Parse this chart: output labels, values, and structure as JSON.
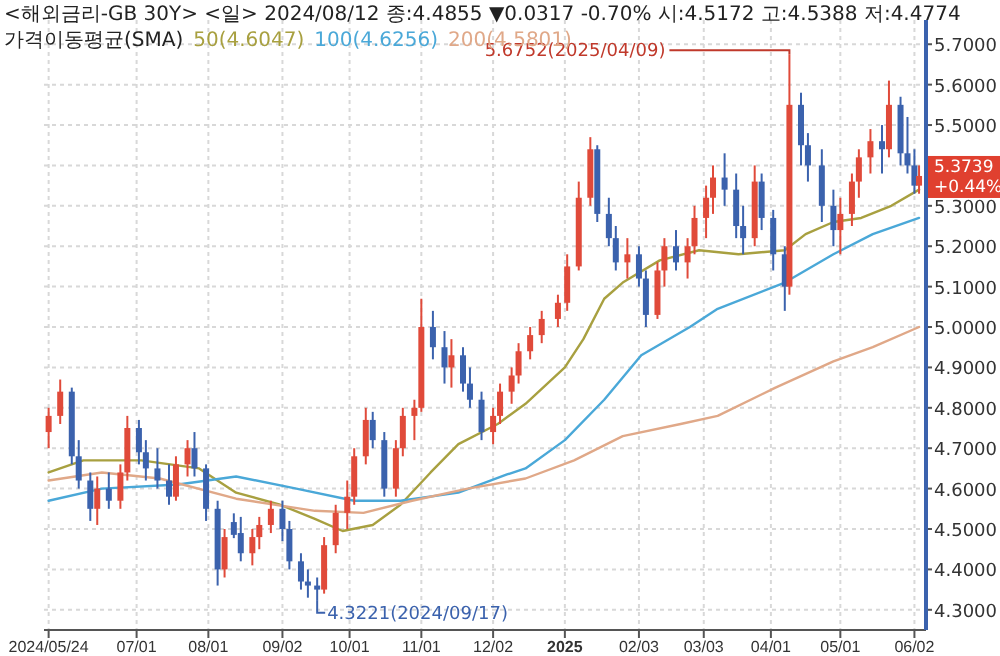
{
  "chart_data": {
    "type": "candlestick",
    "title": "<해외금리-GB 30Y> <일> 2024/08/12 종:4.4855 ▼0.0317 -0.70% 시:4.5172 고:4.5388 저:4.4774",
    "subtitle": "가격이동평균(SMA)",
    "x": [
      "2024-05-24",
      "2024-05-29",
      "2024-06-03",
      "2024-06-06",
      "2024-06-11",
      "2024-06-14",
      "2024-06-19",
      "2024-06-24",
      "2024-06-27",
      "2024-07-02",
      "2024-07-05",
      "2024-07-10",
      "2024-07-15",
      "2024-07-18",
      "2024-07-23",
      "2024-07-26",
      "2024-07-31",
      "2024-08-05",
      "2024-08-08",
      "2024-08-12",
      "2024-08-15",
      "2024-08-20",
      "2024-08-23",
      "2024-08-28",
      "2024-09-02",
      "2024-09-05",
      "2024-09-10",
      "2024-09-13",
      "2024-09-17",
      "2024-09-20",
      "2024-09-25",
      "2024-09-30",
      "2024-10-03",
      "2024-10-08",
      "2024-10-11",
      "2024-10-16",
      "2024-10-21",
      "2024-10-24",
      "2024-10-29",
      "2024-11-01",
      "2024-11-06",
      "2024-11-11",
      "2024-11-14",
      "2024-11-19",
      "2024-11-22",
      "2024-11-27",
      "2024-12-02",
      "2024-12-05",
      "2024-12-10",
      "2024-12-13",
      "2024-12-18",
      "2024-12-23",
      "2024-12-30",
      "2025-01-03",
      "2025-01-08",
      "2025-01-13",
      "2025-01-16",
      "2025-01-21",
      "2025-01-24",
      "2025-01-29",
      "2025-02-03",
      "2025-02-06",
      "2025-02-11",
      "2025-02-14",
      "2025-02-19",
      "2025-02-24",
      "2025-02-27",
      "2025-03-04",
      "2025-03-07",
      "2025-03-12",
      "2025-03-17",
      "2025-03-20",
      "2025-03-25",
      "2025-03-28",
      "2025-04-02",
      "2025-04-07",
      "2025-04-09",
      "2025-04-14",
      "2025-04-17",
      "2025-04-23",
      "2025-04-28",
      "2025-05-01",
      "2025-05-06",
      "2025-05-09",
      "2025-05-14",
      "2025-05-19",
      "2025-05-22",
      "2025-05-27",
      "2025-05-30",
      "2025-06-02",
      "2025-06-04"
    ],
    "ohlc": [
      [
        4.74,
        4.8,
        4.7,
        4.78
      ],
      [
        4.78,
        4.87,
        4.76,
        4.84
      ],
      [
        4.84,
        4.85,
        4.66,
        4.68
      ],
      [
        4.68,
        4.72,
        4.6,
        4.62
      ],
      [
        4.62,
        4.64,
        4.52,
        4.55
      ],
      [
        4.55,
        4.63,
        4.51,
        4.6
      ],
      [
        4.6,
        4.64,
        4.55,
        4.57
      ],
      [
        4.57,
        4.66,
        4.55,
        4.64
      ],
      [
        4.64,
        4.78,
        4.62,
        4.75
      ],
      [
        4.75,
        4.77,
        4.66,
        4.69
      ],
      [
        4.69,
        4.72,
        4.62,
        4.65
      ],
      [
        4.65,
        4.7,
        4.6,
        4.62
      ],
      [
        4.62,
        4.66,
        4.56,
        4.58
      ],
      [
        4.58,
        4.68,
        4.57,
        4.66
      ],
      [
        4.66,
        4.72,
        4.63,
        4.7
      ],
      [
        4.7,
        4.74,
        4.63,
        4.65
      ],
      [
        4.65,
        4.66,
        4.52,
        4.55
      ],
      [
        4.55,
        4.57,
        4.36,
        4.4
      ],
      [
        4.4,
        4.5,
        4.38,
        4.48
      ],
      [
        4.5172,
        4.5388,
        4.4774,
        4.4855
      ],
      [
        4.49,
        4.53,
        4.42,
        4.44
      ],
      [
        4.44,
        4.5,
        4.41,
        4.48
      ],
      [
        4.48,
        4.53,
        4.45,
        4.51
      ],
      [
        4.51,
        4.57,
        4.49,
        4.55
      ],
      [
        4.55,
        4.57,
        4.47,
        4.5
      ],
      [
        4.5,
        4.52,
        4.4,
        4.42
      ],
      [
        4.42,
        4.44,
        4.35,
        4.37
      ],
      [
        4.37,
        4.4,
        4.33,
        4.36
      ],
      [
        4.36,
        4.38,
        4.3221,
        4.35
      ],
      [
        4.35,
        4.48,
        4.34,
        4.46
      ],
      [
        4.46,
        4.56,
        4.44,
        4.54
      ],
      [
        4.54,
        4.62,
        4.5,
        4.58
      ],
      [
        4.58,
        4.7,
        4.56,
        4.68
      ],
      [
        4.68,
        4.8,
        4.66,
        4.77
      ],
      [
        4.77,
        4.79,
        4.7,
        4.72
      ],
      [
        4.72,
        4.74,
        4.58,
        4.6
      ],
      [
        4.6,
        4.72,
        4.58,
        4.7
      ],
      [
        4.7,
        4.8,
        4.68,
        4.78
      ],
      [
        4.78,
        4.82,
        4.72,
        4.8
      ],
      [
        4.8,
        5.07,
        4.79,
        5.0
      ],
      [
        5.0,
        5.04,
        4.92,
        4.95
      ],
      [
        4.95,
        4.99,
        4.86,
        4.9
      ],
      [
        4.9,
        4.97,
        4.85,
        4.93
      ],
      [
        4.93,
        4.95,
        4.84,
        4.86
      ],
      [
        4.86,
        4.9,
        4.8,
        4.82
      ],
      [
        4.82,
        4.84,
        4.72,
        4.74
      ],
      [
        4.74,
        4.8,
        4.71,
        4.78
      ],
      [
        4.78,
        4.86,
        4.76,
        4.84
      ],
      [
        4.84,
        4.9,
        4.81,
        4.88
      ],
      [
        4.88,
        4.96,
        4.86,
        4.94
      ],
      [
        4.94,
        5.0,
        4.92,
        4.98
      ],
      [
        4.98,
        5.04,
        4.96,
        5.02
      ],
      [
        5.02,
        5.08,
        5.0,
        5.06
      ],
      [
        5.06,
        5.18,
        5.04,
        5.15
      ],
      [
        5.15,
        5.36,
        5.14,
        5.32
      ],
      [
        5.32,
        5.47,
        5.3,
        5.44
      ],
      [
        5.44,
        5.45,
        5.26,
        5.28
      ],
      [
        5.28,
        5.32,
        5.2,
        5.22
      ],
      [
        5.22,
        5.25,
        5.14,
        5.16
      ],
      [
        5.16,
        5.22,
        5.12,
        5.18
      ],
      [
        5.18,
        5.2,
        5.1,
        5.12
      ],
      [
        5.12,
        5.14,
        5.0,
        5.03
      ],
      [
        5.03,
        5.16,
        5.02,
        5.14
      ],
      [
        5.14,
        5.22,
        5.1,
        5.2
      ],
      [
        5.2,
        5.24,
        5.14,
        5.16
      ],
      [
        5.16,
        5.22,
        5.12,
        5.2
      ],
      [
        5.2,
        5.3,
        5.18,
        5.27
      ],
      [
        5.27,
        5.35,
        5.22,
        5.32
      ],
      [
        5.32,
        5.4,
        5.28,
        5.37
      ],
      [
        5.37,
        5.43,
        5.3,
        5.34
      ],
      [
        5.34,
        5.38,
        5.22,
        5.25
      ],
      [
        5.25,
        5.3,
        5.18,
        5.22
      ],
      [
        5.22,
        5.4,
        5.2,
        5.36
      ],
      [
        5.36,
        5.38,
        5.24,
        5.27
      ],
      [
        5.27,
        5.29,
        5.14,
        5.18
      ],
      [
        5.18,
        5.2,
        5.04,
        5.1
      ],
      [
        5.1,
        5.6752,
        5.08,
        5.55
      ],
      [
        5.55,
        5.58,
        5.4,
        5.45
      ],
      [
        5.45,
        5.48,
        5.36,
        5.4
      ],
      [
        5.4,
        5.44,
        5.26,
        5.3
      ],
      [
        5.3,
        5.34,
        5.2,
        5.24
      ],
      [
        5.24,
        5.32,
        5.18,
        5.28
      ],
      [
        5.28,
        5.38,
        5.25,
        5.36
      ],
      [
        5.36,
        5.44,
        5.32,
        5.42
      ],
      [
        5.42,
        5.49,
        5.38,
        5.46
      ],
      [
        5.46,
        5.5,
        5.38,
        5.44
      ],
      [
        5.44,
        5.61,
        5.42,
        5.55
      ],
      [
        5.55,
        5.57,
        5.4,
        5.43
      ],
      [
        5.43,
        5.52,
        5.38,
        5.4
      ],
      [
        5.4,
        5.44,
        5.33,
        5.35
      ],
      [
        5.35,
        5.4,
        5.33,
        5.3739
      ]
    ],
    "series": [
      {
        "name": "50(4.6047)",
        "type": "line",
        "color": "#a8a040",
        "x": [
          "2024-05-24",
          "2024-06-08",
          "2024-07-03",
          "2024-07-28",
          "2024-08-13",
          "2024-09-01",
          "2024-09-16",
          "2024-09-28",
          "2024-10-11",
          "2024-10-23",
          "2024-11-05",
          "2024-11-17",
          "2024-12-04",
          "2024-12-16",
          "2025-01-02",
          "2025-01-10",
          "2025-01-19",
          "2025-01-27",
          "2025-02-12",
          "2025-03-01",
          "2025-03-18",
          "2025-04-07",
          "2025-04-16",
          "2025-04-28",
          "2025-05-10",
          "2025-05-23",
          "2025-06-04"
        ],
        "values": [
          4.64,
          4.67,
          4.67,
          4.65,
          4.59,
          4.56,
          4.525,
          4.495,
          4.51,
          4.56,
          4.64,
          4.71,
          4.76,
          4.81,
          4.9,
          4.97,
          5.07,
          5.11,
          5.165,
          5.19,
          5.18,
          5.19,
          5.23,
          5.26,
          5.27,
          5.3,
          5.34
        ]
      },
      {
        "name": "100(4.6256)",
        "type": "line",
        "color": "#4aa8d8",
        "x": [
          "2024-05-24",
          "2024-06-16",
          "2024-07-19",
          "2024-08-13",
          "2024-09-08",
          "2024-10-03",
          "2024-10-23",
          "2024-11-17",
          "2024-12-08",
          "2024-12-16",
          "2025-01-02",
          "2025-01-19",
          "2025-02-04",
          "2025-02-25",
          "2025-03-09",
          "2025-04-07",
          "2025-04-28",
          "2025-05-15",
          "2025-06-04"
        ],
        "values": [
          4.57,
          4.6,
          4.61,
          4.63,
          4.6,
          4.57,
          4.57,
          4.59,
          4.635,
          4.65,
          4.72,
          4.82,
          4.93,
          5.0,
          5.045,
          5.11,
          5.18,
          5.23,
          5.27
        ]
      },
      {
        "name": "200(4.5801)",
        "type": "line",
        "color": "#e0a888",
        "x": [
          "2024-05-24",
          "2024-06-16",
          "2024-07-11",
          "2024-08-13",
          "2024-09-16",
          "2024-10-07",
          "2024-10-28",
          "2024-11-21",
          "2024-12-16",
          "2025-01-06",
          "2025-01-27",
          "2025-02-21",
          "2025-03-09",
          "2025-04-03",
          "2025-04-28",
          "2025-05-15",
          "2025-06-04"
        ],
        "values": [
          4.62,
          4.64,
          4.625,
          4.575,
          4.545,
          4.54,
          4.57,
          4.6,
          4.625,
          4.67,
          4.73,
          4.76,
          4.78,
          4.85,
          4.915,
          4.95,
          5.0
        ]
      }
    ],
    "xlim": [
      "2024-05-22",
      "2025-06-07"
    ],
    "xticks": [
      {
        "value": "2024-05-24",
        "label": "2024/05/24"
      },
      {
        "value": "2024-07-01",
        "label": "07/01"
      },
      {
        "value": "2024-08-01",
        "label": "08/01"
      },
      {
        "value": "2024-09-02",
        "label": "09/02"
      },
      {
        "value": "2024-10-01",
        "label": "10/01"
      },
      {
        "value": "2024-11-01",
        "label": "11/01"
      },
      {
        "value": "2024-12-02",
        "label": "12/02"
      },
      {
        "value": "2025-01-02",
        "label": "2025"
      },
      {
        "value": "2025-02-03",
        "label": "02/03"
      },
      {
        "value": "2025-03-03",
        "label": "03/03"
      },
      {
        "value": "2025-04-01",
        "label": "04/01"
      },
      {
        "value": "2025-05-01",
        "label": "05/01"
      },
      {
        "value": "2025-06-02",
        "label": "06/02"
      }
    ],
    "ylim": [
      4.25,
      5.76
    ],
    "yticks": [
      {
        "value": 4.3,
        "label": "4.3000"
      },
      {
        "value": 4.4,
        "label": "4.4000"
      },
      {
        "value": 4.5,
        "label": "4.5000"
      },
      {
        "value": 4.6,
        "label": "4.6000"
      },
      {
        "value": 4.7,
        "label": "4.7000"
      },
      {
        "value": 4.8,
        "label": "4.8000"
      },
      {
        "value": 4.9,
        "label": "4.9000"
      },
      {
        "value": 5.0,
        "label": "5.0000"
      },
      {
        "value": 5.1,
        "label": "5.1000"
      },
      {
        "value": 5.2,
        "label": "5.2000"
      },
      {
        "value": 5.3,
        "label": "5.3000"
      },
      {
        "value": 5.4,
        "label": null
      },
      {
        "value": 5.5,
        "label": "5.5000"
      },
      {
        "value": 5.6,
        "label": "5.6000"
      },
      {
        "value": 5.7,
        "label": "5.7000"
      }
    ],
    "grid": true,
    "legend": "top left",
    "annotations": [
      {
        "text": "5.6752(2025/04/09)",
        "x": "2025-04-09",
        "y": 5.6752
      },
      {
        "text": "4.3221(2024/09/17)",
        "x": "2024-09-17",
        "y": 4.3221
      },
      {
        "text": "5.3739 +0.44%",
        "x": "2025-06-04",
        "y": 5.3739
      }
    ]
  }
}
